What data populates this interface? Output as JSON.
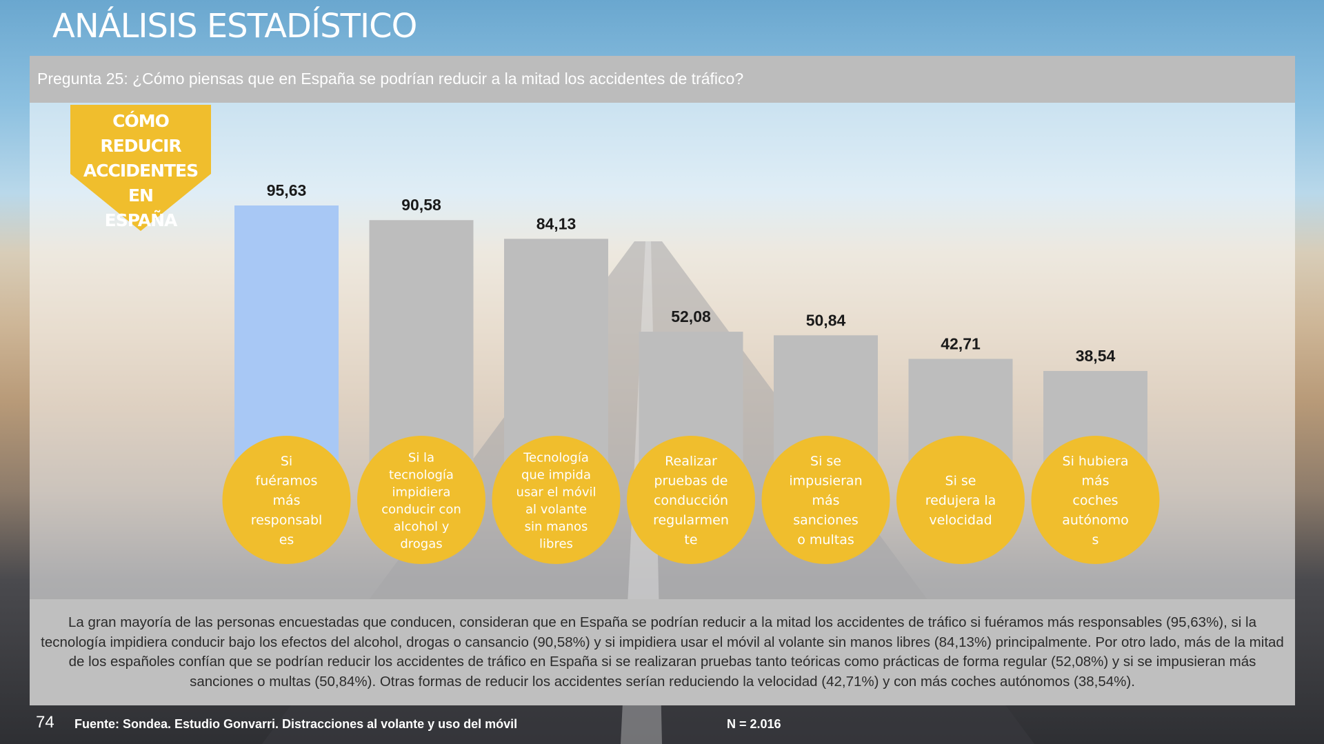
{
  "page": {
    "title": "ANÁLISIS ESTADÍSTICO",
    "question": "Pregunta 25: ¿Cómo piensas que en España se podrían reducir a la mitad los accidentes de tráfico?",
    "badge_lines": [
      "CÓMO REDUCIR",
      "ACCIDENTES EN",
      "ESPAÑA"
    ],
    "summary": "La gran mayoría de las personas encuestadas que conducen, consideran que en España se podrían reducir a la mitad los accidentes de tráfico si fuéramos más responsables (95,63%), si la tecnología impidiera conducir bajo los efectos del alcohol, drogas o cansancio (90,58%) y si impidiera usar el móvil al volante sin manos libres (84,13%) principalmente. Por otro lado, más de la mitad de los españoles confían que se podrían reducir los accidentes de tráfico en España si se realizaran pruebas tanto teóricas como prácticas de forma regular (52,08%) y si se impusieran más sanciones o multas (50,84%). Otras formas de reducir los accidentes serían reduciendo la velocidad (42,71%) y con más coches autónomos (38,54%).",
    "page_number": "74",
    "source": "Fuente: Sondea. Estudio Gonvarri. Distracciones al volante y uso del móvil",
    "sample": "N = 2.016"
  },
  "colors": {
    "highlight_bar": "#a8c8f5",
    "bar": "#bdbdbd",
    "circle": "#f0be2d",
    "badge": "#f0be2d"
  },
  "chart_data": {
    "type": "bar",
    "title": "",
    "xlabel": "",
    "ylabel": "",
    "ylim": [
      0,
      100
    ],
    "grid": false,
    "legend": "none",
    "highlight_index": 0,
    "categories": [
      [
        "Si",
        "fuéramos",
        "más",
        "responsabl",
        "es"
      ],
      [
        "Si la",
        "tecnología",
        "impidiera",
        "conducir con",
        "alcohol y",
        "drogas"
      ],
      [
        "Tecnología",
        "que impida",
        "usar el móvil",
        "al volante",
        "sin manos",
        "libres"
      ],
      [
        "Realizar",
        "pruebas de",
        "conducción",
        "regularmen",
        "te"
      ],
      [
        "Si se",
        "impusieran",
        "más",
        "sanciones",
        "o multas"
      ],
      [
        "Si se",
        "redujera la",
        "velocidad"
      ],
      [
        "Si hubiera",
        "más",
        "coches",
        "autónomo",
        "s"
      ]
    ],
    "values": [
      95.63,
      90.58,
      84.13,
      52.08,
      50.84,
      42.71,
      38.54
    ],
    "value_labels": [
      "95,63",
      "90,58",
      "84,13",
      "52,08",
      "50,84",
      "42,71",
      "38,54"
    ]
  }
}
